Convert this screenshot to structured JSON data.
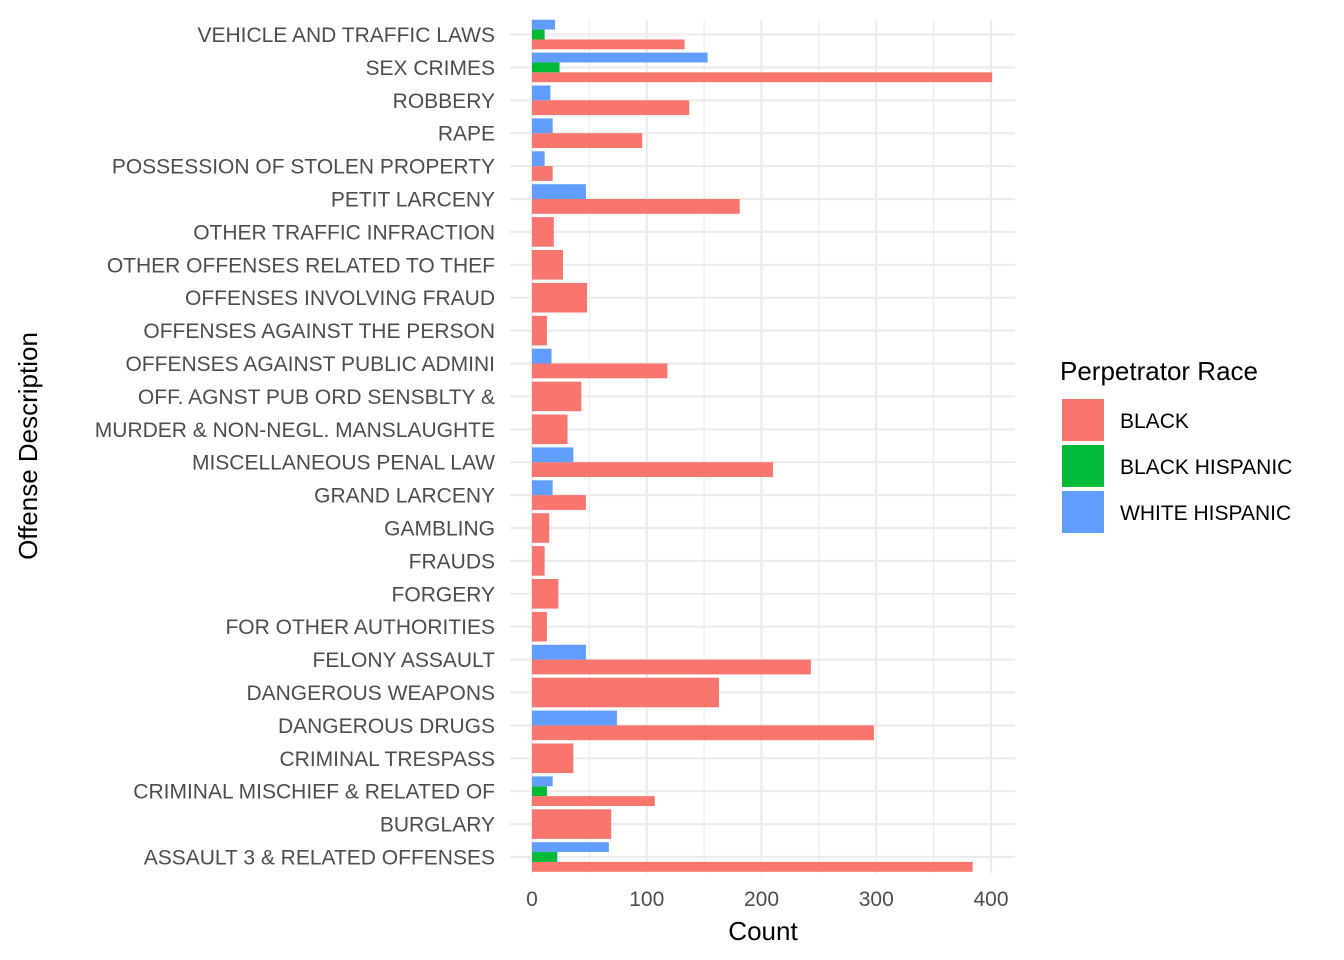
{
  "chart_data": {
    "type": "bar",
    "orientation": "horizontal",
    "xlabel": "Count",
    "ylabel": "Offense Description",
    "xlim": [
      0,
      420
    ],
    "x_ticks": [
      0,
      100,
      200,
      300,
      400
    ],
    "grid": true,
    "legend": {
      "title": "Perpetrator Race",
      "position": "right"
    },
    "categories": [
      "ASSAULT 3 & RELATED OFFENSES",
      "BURGLARY",
      "CRIMINAL MISCHIEF & RELATED OF",
      "CRIMINAL TRESPASS",
      "DANGEROUS DRUGS",
      "DANGEROUS WEAPONS",
      "FELONY ASSAULT",
      "FOR OTHER AUTHORITIES",
      "FORGERY",
      "FRAUDS",
      "GAMBLING",
      "GRAND LARCENY",
      "MISCELLANEOUS PENAL LAW",
      "MURDER & NON-NEGL. MANSLAUGHTE",
      "OFF. AGNST PUB ORD SENSBLTY &",
      "OFFENSES AGAINST PUBLIC ADMINI",
      "OFFENSES AGAINST THE PERSON",
      "OFFENSES INVOLVING FRAUD",
      "OTHER OFFENSES RELATED TO THEF",
      "OTHER TRAFFIC INFRACTION",
      "PETIT LARCENY",
      "POSSESSION OF STOLEN PROPERTY",
      "RAPE",
      "ROBBERY",
      "SEX CRIMES",
      "VEHICLE AND TRAFFIC LAWS"
    ],
    "series": [
      {
        "name": "BLACK",
        "color": "#F8766D",
        "values": [
          384,
          69,
          107,
          36,
          298,
          163,
          243,
          13,
          23,
          11,
          15,
          47,
          210,
          31,
          43,
          118,
          13,
          48,
          27,
          19,
          181,
          18,
          96,
          137,
          401,
          133
        ]
      },
      {
        "name": "BLACK HISPANIC",
        "color": "#00BA38",
        "values": [
          22,
          0,
          13,
          0,
          0,
          0,
          0,
          0,
          0,
          0,
          0,
          0,
          0,
          0,
          0,
          0,
          0,
          0,
          0,
          0,
          0,
          0,
          0,
          0,
          24,
          11
        ]
      },
      {
        "name": "WHITE HISPANIC",
        "color": "#619CFF",
        "values": [
          67,
          0,
          18,
          0,
          74,
          0,
          47,
          0,
          0,
          0,
          0,
          18,
          36,
          0,
          0,
          17,
          0,
          0,
          0,
          0,
          47,
          11,
          18,
          16,
          153,
          20
        ]
      }
    ]
  }
}
